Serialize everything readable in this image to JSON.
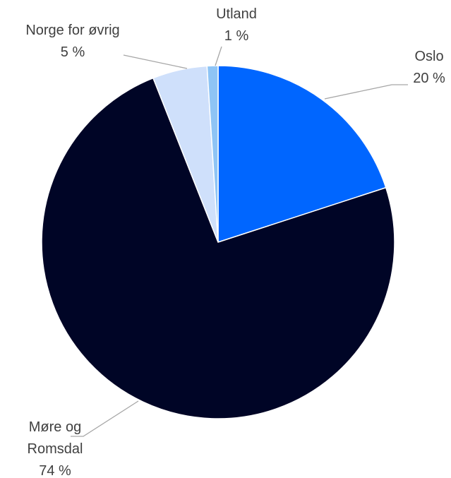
{
  "chart_data": {
    "type": "pie",
    "categories": [
      "Oslo",
      "Møre og Romsdal",
      "Norge for øvrig",
      "Utland"
    ],
    "values": [
      20,
      74,
      5,
      1
    ],
    "value_labels": [
      "20 %",
      "74 %",
      "5 %",
      "1 %"
    ],
    "colors": [
      "#0066ff",
      "#000526",
      "#cfe0fb",
      "#8ec4f5"
    ]
  }
}
